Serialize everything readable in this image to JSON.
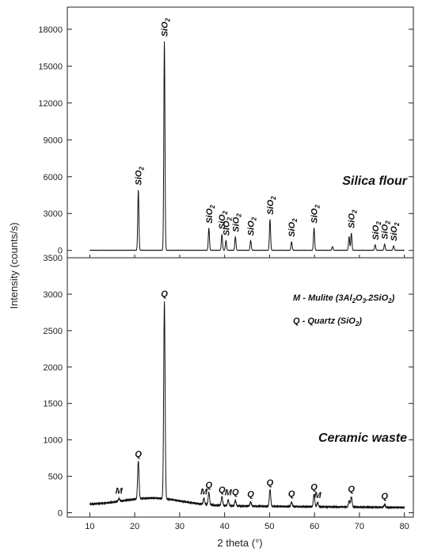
{
  "chart_data": {
    "type": "line",
    "xlabel": "2 theta (°)",
    "ylabel": "Intensity (counts/s)",
    "xlim": [
      5,
      82
    ],
    "xticks": [
      10,
      20,
      30,
      40,
      50,
      60,
      70,
      80
    ],
    "grid": false,
    "panels": [
      {
        "name": "Silica flour",
        "ylim": [
          -600,
          19800
        ],
        "yticks": [
          0,
          3000,
          6000,
          9000,
          12000,
          15000,
          18000
        ],
        "baseline": 10,
        "peaks": [
          {
            "x": 20.8,
            "y": 4900,
            "label": "SiO2"
          },
          {
            "x": 26.6,
            "y": 17000,
            "label": "SiO2"
          },
          {
            "x": 36.5,
            "y": 1800,
            "label": "SiO2"
          },
          {
            "x": 39.4,
            "y": 1300,
            "label": "SiO2"
          },
          {
            "x": 40.3,
            "y": 800,
            "label": "SiO2"
          },
          {
            "x": 42.4,
            "y": 1100,
            "label": "SiO2"
          },
          {
            "x": 45.8,
            "y": 800,
            "label": "SiO2"
          },
          {
            "x": 50.1,
            "y": 2500,
            "label": "SiO2"
          },
          {
            "x": 54.9,
            "y": 700,
            "label": "SiO2"
          },
          {
            "x": 59.9,
            "y": 1800,
            "label": "SiO2"
          },
          {
            "x": 64.0,
            "y": 300,
            "label": null
          },
          {
            "x": 67.7,
            "y": 1100,
            "label": null
          },
          {
            "x": 68.2,
            "y": 1400,
            "label": "SiO2"
          },
          {
            "x": 73.5,
            "y": 450,
            "label": "SiO2"
          },
          {
            "x": 75.6,
            "y": 500,
            "label": "SiO2"
          },
          {
            "x": 77.6,
            "y": 350,
            "label": "SiO2"
          }
        ]
      },
      {
        "name": "Ceramic waste",
        "ylim": [
          -60,
          3500
        ],
        "yticks": [
          0,
          500,
          1000,
          1500,
          2000,
          2500,
          3000,
          3500
        ],
        "baseline": "amorphous hump, ~110 at 10° rising to ~210 near 24°, ~140 near 38°, ~70 at 80°",
        "peaks": [
          {
            "x": 16.5,
            "y": 40,
            "label": "M"
          },
          {
            "x": 20.8,
            "y": 520,
            "label": "Q"
          },
          {
            "x": 26.6,
            "y": 2700,
            "label": "Q"
          },
          {
            "x": 35.4,
            "y": 80,
            "label": "M"
          },
          {
            "x": 36.5,
            "y": 170,
            "label": "Q"
          },
          {
            "x": 39.4,
            "y": 120,
            "label": "Q"
          },
          {
            "x": 40.8,
            "y": 80,
            "label": "M"
          },
          {
            "x": 42.4,
            "y": 80,
            "label": "Q"
          },
          {
            "x": 45.8,
            "y": 60,
            "label": "Q"
          },
          {
            "x": 50.1,
            "y": 230,
            "label": "Q"
          },
          {
            "x": 54.9,
            "y": 60,
            "label": "Q"
          },
          {
            "x": 59.9,
            "y": 170,
            "label": "Q"
          },
          {
            "x": 60.7,
            "y": 60,
            "label": "M"
          },
          {
            "x": 67.7,
            "y": 80,
            "label": null
          },
          {
            "x": 68.2,
            "y": 140,
            "label": "Q"
          },
          {
            "x": 75.6,
            "y": 40,
            "label": "Q"
          }
        ]
      }
    ],
    "legend": [
      {
        "symbol": "M",
        "text": "M - Mulite (3Al",
        "formula_parts": [
          "M - Mulite (3Al",
          "2",
          "O",
          "3",
          ".2SiO",
          "2",
          ")"
        ]
      },
      {
        "symbol": "Q",
        "text": "Q - Quartz (SiO",
        "formula_parts": [
          "Q - Quartz (SiO",
          "2",
          ")"
        ]
      }
    ]
  },
  "text": {
    "top_label": "Silica flour",
    "bottom_label": "Ceramic waste",
    "ylabel": "Intensity (counts/s)",
    "xlabel": "2 theta (°)",
    "legend_m": "M - Mulite (3Al",
    "legend_m_rest": ".2SiO",
    "legend_q": "Q - Quartz (SiO",
    "peak_silica_base": "SiO"
  },
  "colors": {
    "line": "#111111",
    "axis": "#222222",
    "background": "#ffffff"
  }
}
